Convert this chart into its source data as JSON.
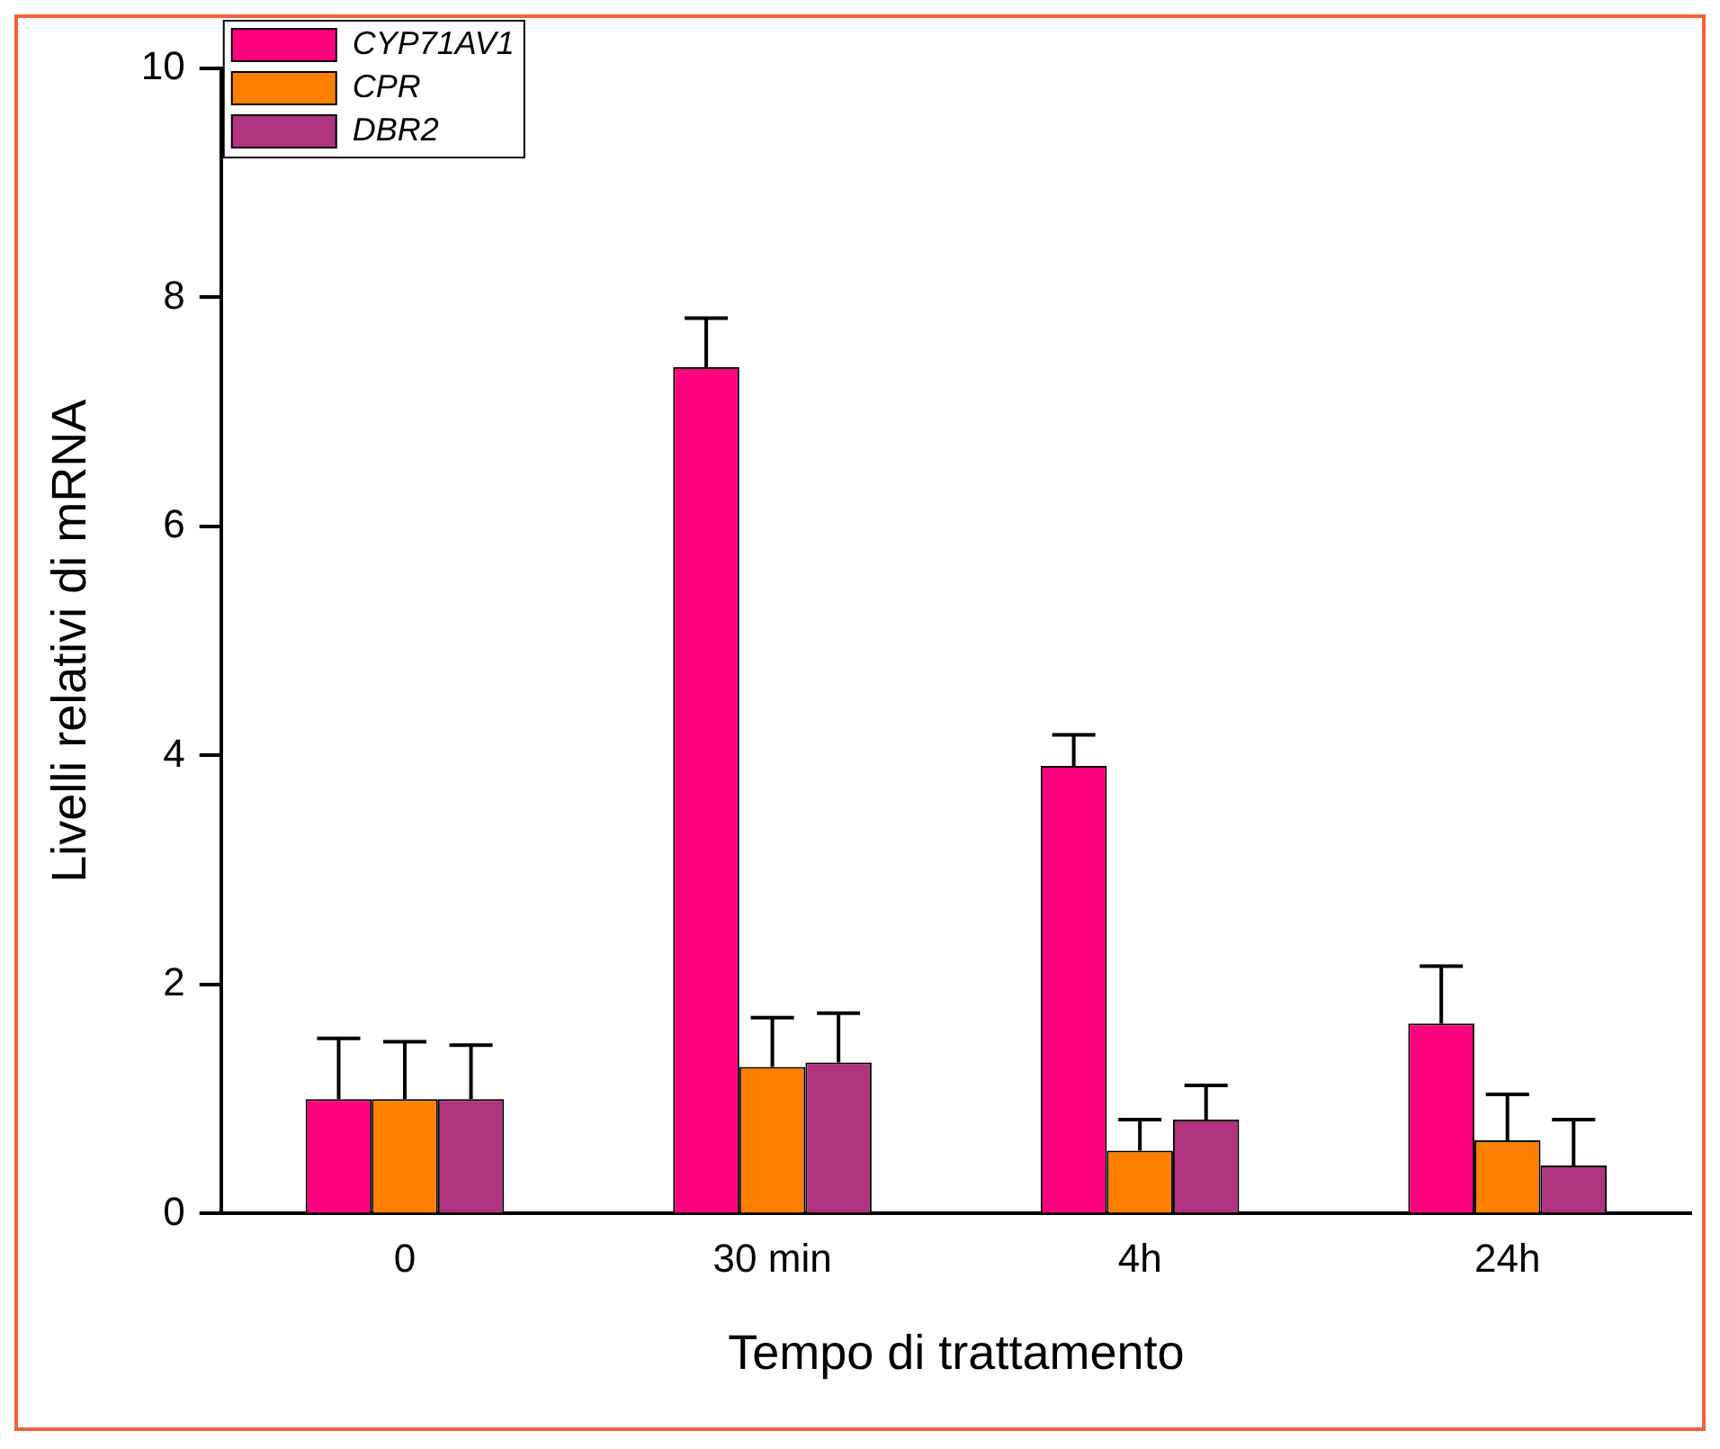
{
  "chart_data": {
    "type": "bar",
    "xlabel": "Tempo di trattamento",
    "ylabel": "Livelli relativi di mRNA",
    "categories": [
      "0",
      "30 min",
      "4h",
      "24h"
    ],
    "series": [
      {
        "name": "CYP71AV1",
        "color": "#ff007f",
        "values": [
          1.0,
          7.39,
          3.91,
          1.66
        ],
        "errors": [
          [
            1.0,
            1.53
          ],
          [
            7.39,
            7.82
          ],
          [
            3.91,
            4.18
          ],
          [
            1.66,
            2.16
          ]
        ]
      },
      {
        "name": "CPR",
        "color": "#ff8000",
        "values": [
          1.0,
          1.28,
          0.55,
          0.64
        ],
        "errors": [
          [
            1.0,
            1.5
          ],
          [
            1.28,
            1.71
          ],
          [
            0.55,
            0.82
          ],
          [
            0.64,
            1.04
          ]
        ]
      },
      {
        "name": "DBR2",
        "color": "#b0337f",
        "values": [
          1.0,
          1.32,
          0.82,
          0.42
        ],
        "errors": [
          [
            1.0,
            1.47
          ],
          [
            1.32,
            1.75
          ],
          [
            0.82,
            1.12
          ],
          [
            0.42,
            0.82
          ]
        ]
      }
    ],
    "ylim": [
      0,
      10
    ],
    "yticks": [
      0,
      2,
      4,
      6,
      8,
      10
    ],
    "grid": false,
    "legend": "top left"
  }
}
